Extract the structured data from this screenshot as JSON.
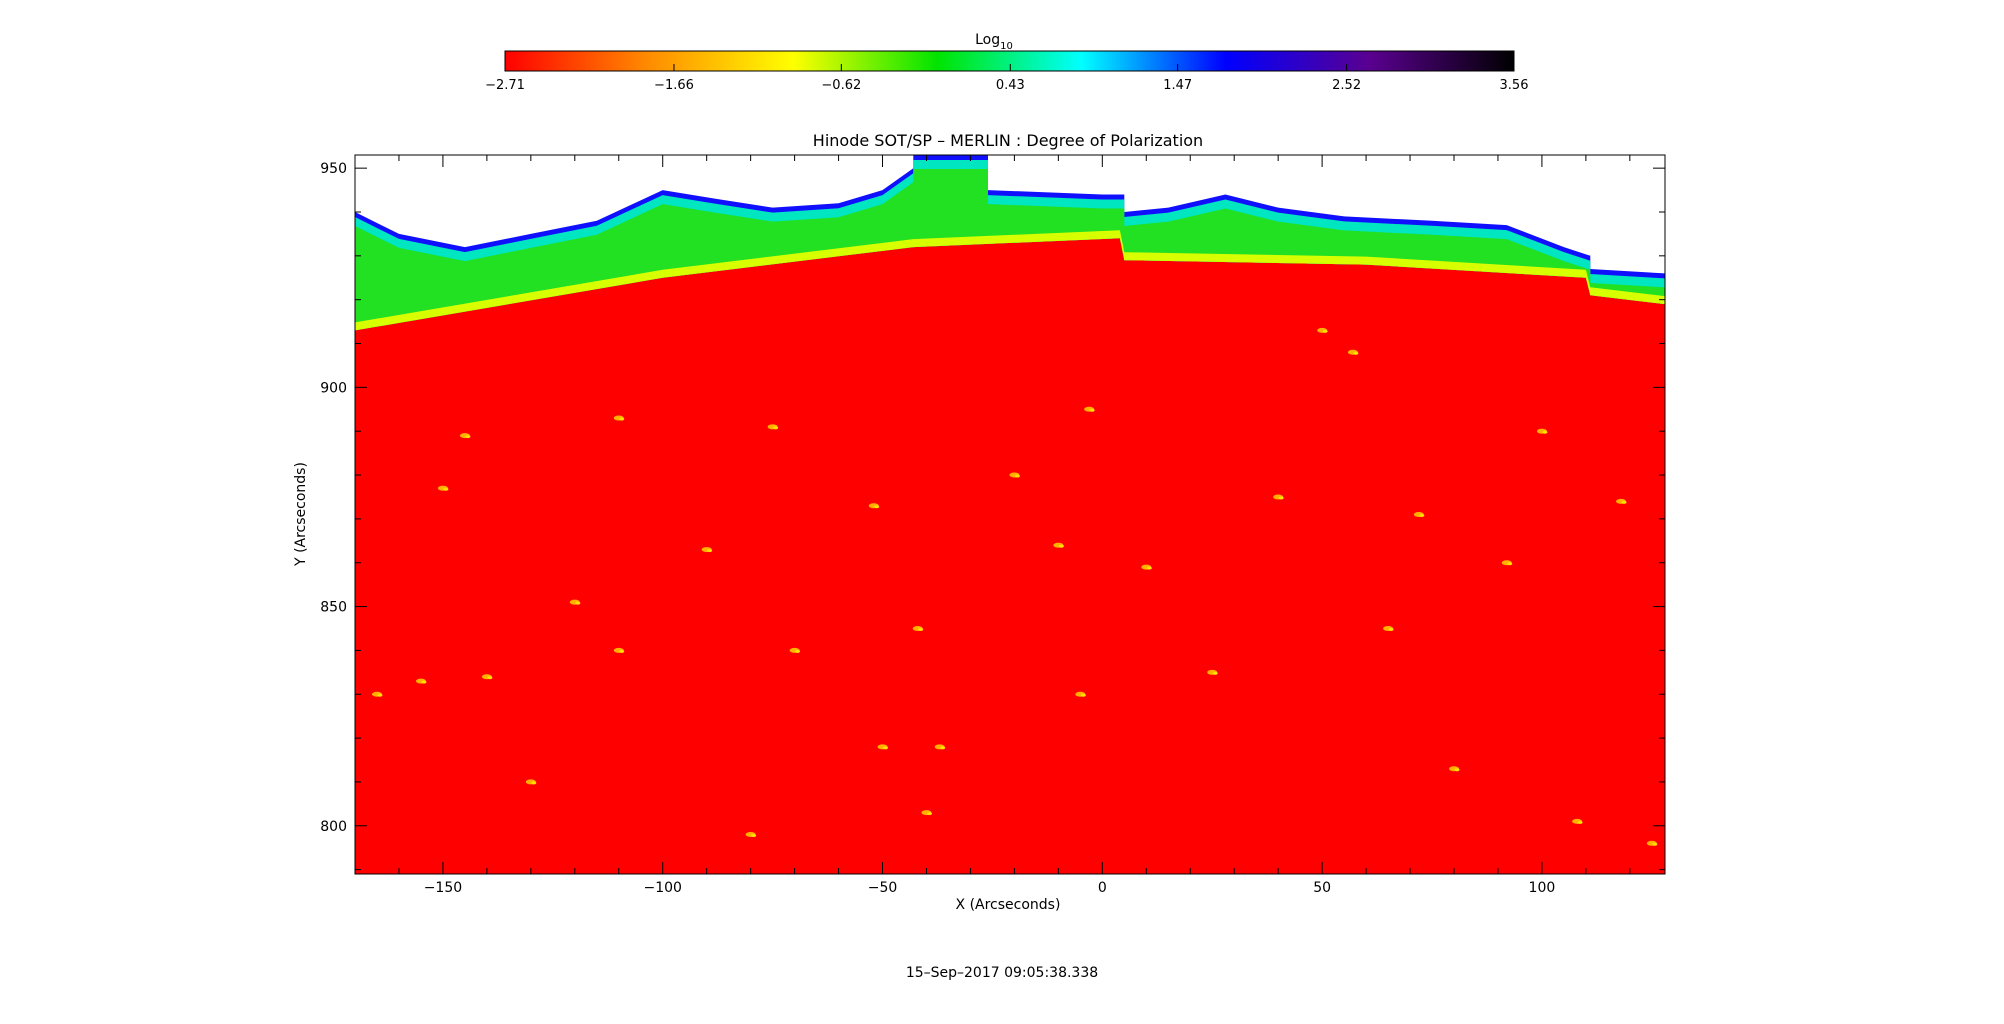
{
  "chart_data": {
    "type": "heatmap",
    "title": "Hinode SOT/SP – MERLIN : Degree of Polarization",
    "xlabel": "X (Arcseconds)",
    "ylabel": "Y (Arcseconds)",
    "xlim": [
      -170,
      128
    ],
    "ylim": [
      789,
      953
    ],
    "x_ticks": [
      -150,
      -100,
      -50,
      0,
      50,
      100
    ],
    "x_tick_labels": [
      "−150",
      "−100",
      "−50",
      "0",
      "50",
      "100"
    ],
    "y_ticks": [
      800,
      850,
      900,
      950
    ],
    "y_tick_labels": [
      "800",
      "850",
      "900",
      "950"
    ],
    "colorbar": {
      "label": "Log",
      "label_subscript": "10",
      "range": [
        -2.71,
        3.56
      ],
      "ticks": [
        -2.71,
        -1.66,
        -0.62,
        0.43,
        1.47,
        2.52,
        3.56
      ],
      "tick_labels": [
        "−2.71",
        "−1.66",
        "−0.62",
        "0.43",
        "1.47",
        "2.52",
        "3.56"
      ],
      "colors": [
        "#ff0000",
        "#ff8c00",
        "#ffff00",
        "#00e400",
        "#00ffff",
        "#0000ff",
        "#5a0090",
        "#000000"
      ]
    },
    "limb_height": [
      {
        "x": -170,
        "y": 913
      },
      {
        "x": -100,
        "y": 925
      },
      {
        "x": -43,
        "y": 932
      },
      {
        "x": 4,
        "y": 934
      },
      {
        "x": 5,
        "y": 929
      },
      {
        "x": 60,
        "y": 928
      },
      {
        "x": 110,
        "y": 925
      },
      {
        "x": 111,
        "y": 921
      },
      {
        "x": 128,
        "y": 919
      }
    ],
    "polarization_top": [
      {
        "x": -170,
        "y": 940
      },
      {
        "x": -160,
        "y": 935
      },
      {
        "x": -145,
        "y": 932
      },
      {
        "x": -130,
        "y": 935
      },
      {
        "x": -115,
        "y": 938
      },
      {
        "x": -100,
        "y": 945
      },
      {
        "x": -88,
        "y": 943
      },
      {
        "x": -75,
        "y": 941
      },
      {
        "x": -60,
        "y": 942
      },
      {
        "x": -50,
        "y": 945
      },
      {
        "x": -43,
        "y": 950
      },
      {
        "x": -43,
        "y": 953
      },
      {
        "x": -26,
        "y": 953
      },
      {
        "x": -26,
        "y": 945
      },
      {
        "x": 0,
        "y": 944
      },
      {
        "x": 5,
        "y": 944
      },
      {
        "x": 5,
        "y": 940
      },
      {
        "x": 15,
        "y": 941
      },
      {
        "x": 28,
        "y": 944
      },
      {
        "x": 40,
        "y": 941
      },
      {
        "x": 55,
        "y": 939
      },
      {
        "x": 75,
        "y": 938
      },
      {
        "x": 92,
        "y": 937
      },
      {
        "x": 105,
        "y": 932
      },
      {
        "x": 111,
        "y": 930
      },
      {
        "x": 111,
        "y": 927
      },
      {
        "x": 128,
        "y": 926
      }
    ],
    "bright_points": [
      [
        -145,
        889
      ],
      [
        -150,
        877
      ],
      [
        -120,
        851
      ],
      [
        -110,
        893
      ],
      [
        -155,
        833
      ],
      [
        -140,
        834
      ],
      [
        -75,
        891
      ],
      [
        -52,
        873
      ],
      [
        -90,
        863
      ],
      [
        -10,
        864
      ],
      [
        -3,
        895
      ],
      [
        10,
        859
      ],
      [
        -42,
        845
      ],
      [
        -50,
        818
      ],
      [
        -37,
        818
      ],
      [
        50,
        913
      ],
      [
        57,
        908
      ],
      [
        72,
        871
      ],
      [
        92,
        860
      ],
      [
        100,
        890
      ],
      [
        108,
        801
      ],
      [
        125,
        796
      ],
      [
        -165,
        830
      ],
      [
        -80,
        798
      ],
      [
        -40,
        803
      ],
      [
        -110,
        840
      ],
      [
        25,
        835
      ],
      [
        80,
        813
      ],
      [
        -5,
        830
      ],
      [
        40,
        875
      ],
      [
        -130,
        810
      ],
      [
        118,
        874
      ],
      [
        -70,
        840
      ],
      [
        65,
        845
      ],
      [
        -20,
        880
      ]
    ]
  },
  "footer": {
    "timestamp": "15–Sep–2017 09:05:38.338"
  }
}
